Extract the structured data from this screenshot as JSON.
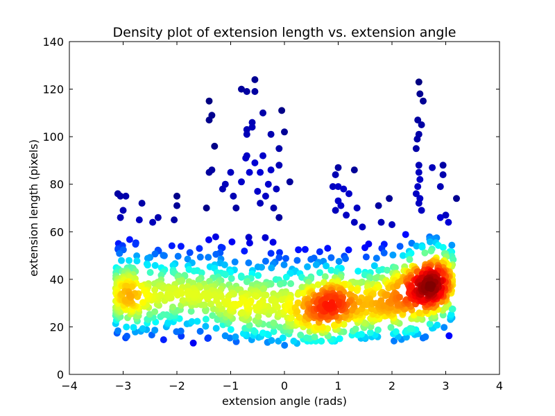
{
  "chart_data": {
    "type": "scatter",
    "title": "Density plot of extension length vs. extension angle",
    "xlabel": "extension angle (rads)",
    "ylabel": "extension length (pixels)",
    "xlim": [
      -4,
      4
    ],
    "ylim": [
      0,
      140
    ],
    "xticks": [
      "−4",
      "−3",
      "−2",
      "−1",
      "0",
      "1",
      "2",
      "3",
      "4"
    ],
    "yticks": [
      "0",
      "20",
      "40",
      "60",
      "80",
      "100",
      "120",
      "140"
    ],
    "grid": false,
    "legend": "none",
    "colormap": "jet",
    "color_encodes": "point density",
    "clusters": [
      {
        "x_center": -3.0,
        "x_spread": 0.22,
        "y_range": [
          15,
          58
        ],
        "y_peak": 35
      },
      {
        "x_center": -2.1,
        "x_spread": 0.3,
        "y_range": [
          14,
          55
        ],
        "y_peak": 32
      },
      {
        "x_center": -1.2,
        "x_spread": 0.35,
        "y_range": [
          13,
          58
        ],
        "y_peak": 32
      },
      {
        "x_center": -0.3,
        "x_spread": 0.35,
        "y_range": [
          12,
          60
        ],
        "y_peak": 30
      },
      {
        "x_center": 0.5,
        "x_spread": 0.3,
        "y_range": [
          14,
          55
        ],
        "y_peak": 27
      },
      {
        "x_center": 1.1,
        "x_spread": 0.3,
        "y_range": [
          14,
          55
        ],
        "y_peak": 29
      },
      {
        "x_center": 1.8,
        "x_spread": 0.3,
        "y_range": [
          14,
          55
        ],
        "y_peak": 30
      },
      {
        "x_center": 2.5,
        "x_spread": 0.22,
        "y_range": [
          15,
          60
        ],
        "y_peak": 36
      },
      {
        "x_center": 2.9,
        "x_spread": 0.2,
        "y_range": [
          15,
          57
        ],
        "y_peak": 38
      }
    ],
    "outliers": [
      {
        "x": -3.1,
        "y": 76
      },
      {
        "x": -3.05,
        "y": 75
      },
      {
        "x": -2.95,
        "y": 75
      },
      {
        "x": -3.0,
        "y": 69
      },
      {
        "x": -3.05,
        "y": 66
      },
      {
        "x": -2.7,
        "y": 65
      },
      {
        "x": -2.65,
        "y": 72
      },
      {
        "x": -2.45,
        "y": 64
      },
      {
        "x": -2.35,
        "y": 66
      },
      {
        "x": -2.0,
        "y": 75
      },
      {
        "x": -2.0,
        "y": 71
      },
      {
        "x": -2.05,
        "y": 65
      },
      {
        "x": -1.4,
        "y": 115
      },
      {
        "x": -1.35,
        "y": 109
      },
      {
        "x": -1.4,
        "y": 107
      },
      {
        "x": -1.3,
        "y": 96
      },
      {
        "x": -1.35,
        "y": 86
      },
      {
        "x": -1.4,
        "y": 85
      },
      {
        "x": -1.45,
        "y": 70
      },
      {
        "x": -1.15,
        "y": 78
      },
      {
        "x": -1.1,
        "y": 80
      },
      {
        "x": -1.0,
        "y": 85
      },
      {
        "x": -0.95,
        "y": 75
      },
      {
        "x": -0.9,
        "y": 70
      },
      {
        "x": -0.8,
        "y": 120
      },
      {
        "x": -0.7,
        "y": 119
      },
      {
        "x": -0.55,
        "y": 124
      },
      {
        "x": -0.55,
        "y": 119
      },
      {
        "x": -0.4,
        "y": 110
      },
      {
        "x": -0.6,
        "y": 106
      },
      {
        "x": -0.6,
        "y": 104
      },
      {
        "x": -0.7,
        "y": 103
      },
      {
        "x": -0.7,
        "y": 101
      },
      {
        "x": -0.25,
        "y": 101
      },
      {
        "x": -0.05,
        "y": 111
      },
      {
        "x": 0.0,
        "y": 102
      },
      {
        "x": -0.1,
        "y": 95
      },
      {
        "x": -0.7,
        "y": 92
      },
      {
        "x": -0.72,
        "y": 91
      },
      {
        "x": -0.4,
        "y": 92
      },
      {
        "x": -0.55,
        "y": 89
      },
      {
        "x": -0.45,
        "y": 85
      },
      {
        "x": -0.65,
        "y": 85
      },
      {
        "x": -0.25,
        "y": 86
      },
      {
        "x": -0.1,
        "y": 88
      },
      {
        "x": -0.8,
        "y": 81
      },
      {
        "x": -0.3,
        "y": 80
      },
      {
        "x": -0.15,
        "y": 78
      },
      {
        "x": 0.1,
        "y": 81
      },
      {
        "x": -0.5,
        "y": 77
      },
      {
        "x": -0.35,
        "y": 75
      },
      {
        "x": -0.45,
        "y": 72
      },
      {
        "x": -0.2,
        "y": 70
      },
      {
        "x": -0.1,
        "y": 66
      },
      {
        "x": 1.0,
        "y": 87
      },
      {
        "x": 1.3,
        "y": 86
      },
      {
        "x": 0.95,
        "y": 84
      },
      {
        "x": 0.9,
        "y": 79
      },
      {
        "x": 1.0,
        "y": 79
      },
      {
        "x": 1.1,
        "y": 78
      },
      {
        "x": 1.2,
        "y": 76
      },
      {
        "x": 1.0,
        "y": 73
      },
      {
        "x": 1.05,
        "y": 71
      },
      {
        "x": 1.35,
        "y": 70
      },
      {
        "x": 0.95,
        "y": 69
      },
      {
        "x": 1.15,
        "y": 67
      },
      {
        "x": 1.3,
        "y": 64
      },
      {
        "x": 1.45,
        "y": 62
      },
      {
        "x": 1.75,
        "y": 71
      },
      {
        "x": 1.95,
        "y": 74
      },
      {
        "x": 1.8,
        "y": 64
      },
      {
        "x": 2.0,
        "y": 63
      },
      {
        "x": 2.5,
        "y": 123
      },
      {
        "x": 2.52,
        "y": 118
      },
      {
        "x": 2.58,
        "y": 115
      },
      {
        "x": 2.48,
        "y": 107
      },
      {
        "x": 2.55,
        "y": 105
      },
      {
        "x": 2.5,
        "y": 101
      },
      {
        "x": 2.47,
        "y": 99
      },
      {
        "x": 2.45,
        "y": 95
      },
      {
        "x": 2.5,
        "y": 88
      },
      {
        "x": 2.5,
        "y": 85
      },
      {
        "x": 2.52,
        "y": 82
      },
      {
        "x": 2.48,
        "y": 79
      },
      {
        "x": 2.45,
        "y": 76
      },
      {
        "x": 2.52,
        "y": 74
      },
      {
        "x": 2.5,
        "y": 72
      },
      {
        "x": 2.55,
        "y": 69
      },
      {
        "x": 2.75,
        "y": 87
      },
      {
        "x": 2.95,
        "y": 88
      },
      {
        "x": 2.95,
        "y": 84
      },
      {
        "x": 2.9,
        "y": 79
      },
      {
        "x": 3.0,
        "y": 67
      },
      {
        "x": 3.2,
        "y": 74
      },
      {
        "x": 2.9,
        "y": 66
      },
      {
        "x": 3.05,
        "y": 64
      }
    ]
  }
}
